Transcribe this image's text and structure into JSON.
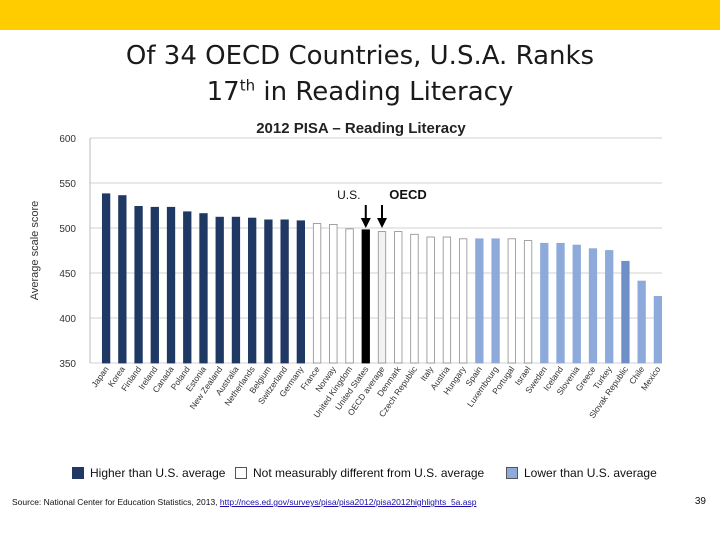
{
  "slide": {
    "title_line1": "Of 34 OECD Countries, U.S.A. Ranks",
    "title_line2_num": "17",
    "title_line2_sup": "th",
    "title_line2_rest": " in Reading Literacy",
    "page_number": "39",
    "source_prefix": "Source:  National Center for Education Statistics, 2013, ",
    "source_link": "http://nces.ed.gov/surveys/pisa/pisa2012/pisa2012highlights_5a.asp"
  },
  "legend": {
    "higher": "Higher than U.S. average",
    "same": "Not measurably different from U.S. average",
    "lower": "Lower than U.S. average"
  },
  "colors": {
    "higher": "#1f3864",
    "same": "#ffffff",
    "lower": "#8eaadb",
    "us": "#000000",
    "oecd": "#f2f2f2",
    "lower_alt": "#6f8fc9",
    "accent": "#ffcc00"
  },
  "chart_data": {
    "type": "bar",
    "title": "2012 PISA – Reading Literacy",
    "ylabel": "Average scale score",
    "xlabel": "",
    "ylim": [
      350,
      600
    ],
    "yticks": [
      350,
      400,
      450,
      500,
      550,
      600
    ],
    "grid": true,
    "annotations": [
      {
        "label": "U.S.",
        "target": "United States"
      },
      {
        "label": "OECD",
        "target": "OECD average"
      }
    ],
    "categories": [
      "Japan",
      "Korea",
      "Finland",
      "Ireland",
      "Canada",
      "Poland",
      "Estonia",
      "New Zealand",
      "Australia",
      "Netherlands",
      "Belgium",
      "Switzerland",
      "Germany",
      "France",
      "Norway",
      "United Kingdom",
      "United States",
      "OECD average",
      "Denmark",
      "Czech Republic",
      "Italy",
      "Austria",
      "Hungary",
      "Spain",
      "Luxembourg",
      "Portugal",
      "Israel",
      "Sweden",
      "Iceland",
      "Slovenia",
      "Greece",
      "Turkey",
      "Slovak Republic",
      "Chile",
      "Mexico"
    ],
    "values": [
      538,
      536,
      524,
      523,
      523,
      518,
      516,
      512,
      512,
      511,
      509,
      509,
      508,
      505,
      504,
      499,
      498,
      496,
      496,
      493,
      490,
      490,
      488,
      488,
      488,
      488,
      486,
      483,
      483,
      481,
      477,
      475,
      463,
      441,
      424
    ],
    "groups": [
      "higher",
      "higher",
      "higher",
      "higher",
      "higher",
      "higher",
      "higher",
      "higher",
      "higher",
      "higher",
      "higher",
      "higher",
      "higher",
      "same",
      "same",
      "same",
      "us",
      "oecd",
      "same",
      "same",
      "same",
      "same",
      "same",
      "lower",
      "lower",
      "same",
      "same",
      "lower",
      "lower",
      "lower",
      "lower",
      "lower",
      "lower_alt",
      "lower",
      "lower"
    ]
  }
}
